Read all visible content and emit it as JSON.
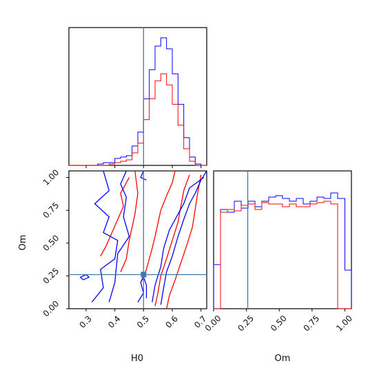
{
  "chart_data": {
    "type": "corner",
    "parameters": [
      "H0",
      "Om"
    ],
    "x_axis_label": "H0",
    "y_axis_label_left": "Om",
    "om_axis_label": "Om",
    "h0_range": [
      0.24,
      0.72
    ],
    "om_range": [
      0.0,
      1.05
    ],
    "h0_ticks": [
      "0.3",
      "0.4",
      "0.5",
      "0.6",
      "0.7"
    ],
    "om_ticks": [
      "0.00",
      "0.25",
      "0.50",
      "0.75",
      "1.00"
    ],
    "truth": {
      "H0": 0.5,
      "Om": 0.26
    },
    "colors": {
      "series_a": "#0000ff",
      "series_b": "#ff0000",
      "truth": "#3d7aab"
    },
    "h0_hist": {
      "bins": [
        0.24,
        0.26,
        0.28,
        0.3,
        0.32,
        0.34,
        0.36,
        0.38,
        0.4,
        0.42,
        0.44,
        0.46,
        0.48,
        0.5,
        0.52,
        0.54,
        0.56,
        0.58,
        0.6,
        0.62,
        0.64,
        0.66,
        0.68,
        0.7,
        0.72
      ],
      "series": [
        {
          "color": "blue",
          "values": [
            0,
            0,
            0,
            0,
            0,
            1,
            2,
            2,
            5,
            6,
            7,
            14,
            24,
            48,
            69,
            86,
            92,
            84,
            66,
            44,
            20,
            6,
            1,
            0
          ]
        },
        {
          "color": "red",
          "values": [
            0,
            0,
            0,
            0,
            0,
            0,
            0,
            1,
            2,
            3,
            4,
            9,
            16,
            33,
            48,
            61,
            66,
            58,
            44,
            29,
            12,
            3,
            0,
            0
          ]
        }
      ]
    },
    "om_hist": {
      "bins": [
        0.0,
        0.0525,
        0.105,
        0.1575,
        0.21,
        0.2625,
        0.315,
        0.3675,
        0.42,
        0.4725,
        0.525,
        0.5775,
        0.63,
        0.6825,
        0.735,
        0.7875,
        0.84,
        0.8925,
        0.945,
        1.0,
        1.05
      ],
      "series": [
        {
          "color": "blue",
          "values": [
            0.32,
            0.72,
            0.7,
            0.78,
            0.73,
            0.78,
            0.74,
            0.78,
            0.81,
            0.82,
            0.8,
            0.78,
            0.8,
            0.76,
            0.78,
            0.81,
            0.8,
            0.84,
            0.8,
            0.28
          ]
        },
        {
          "color": "red",
          "values": [
            0.0,
            0.7,
            0.72,
            0.71,
            0.75,
            0.76,
            0.72,
            0.77,
            0.76,
            0.76,
            0.74,
            0.76,
            0.74,
            0.74,
            0.76,
            0.77,
            0.78,
            0.76,
            0.0,
            0.0
          ]
        }
      ]
    },
    "contours": {
      "blue": [
        [
          [
            0.29,
            0.22
          ],
          [
            0.31,
            0.24
          ],
          [
            0.3,
            0.26
          ],
          [
            0.28,
            0.24
          ],
          [
            0.29,
            0.22
          ]
        ],
        [
          [
            0.32,
            0.05
          ],
          [
            0.36,
            0.16
          ],
          [
            0.35,
            0.3
          ],
          [
            0.4,
            0.38
          ],
          [
            0.41,
            0.52
          ],
          [
            0.36,
            0.58
          ],
          [
            0.38,
            0.7
          ],
          [
            0.33,
            0.8
          ],
          [
            0.38,
            0.9
          ],
          [
            0.36,
            1.05
          ]
        ],
        [
          [
            0.44,
            1.05
          ],
          [
            0.42,
            0.95
          ],
          [
            0.44,
            0.85
          ],
          [
            0.43,
            0.7
          ],
          [
            0.45,
            0.55
          ],
          [
            0.41,
            0.42
          ],
          [
            0.4,
            0.2
          ],
          [
            0.38,
            0.05
          ]
        ],
        [
          [
            0.48,
            0.05
          ],
          [
            0.5,
            0.12
          ],
          [
            0.49,
            0.2
          ],
          [
            0.5,
            0.24
          ],
          [
            0.51,
            0.18
          ],
          [
            0.51,
            0.08
          ]
        ],
        [
          [
            0.5,
            1.05
          ],
          [
            0.49,
            1.0
          ],
          [
            0.51,
            0.98
          ]
        ],
        [
          [
            0.53,
            0.05
          ],
          [
            0.54,
            0.18
          ],
          [
            0.56,
            0.32
          ],
          [
            0.57,
            0.46
          ],
          [
            0.59,
            0.6
          ],
          [
            0.62,
            0.72
          ],
          [
            0.64,
            0.8
          ],
          [
            0.66,
            0.92
          ],
          [
            0.71,
            1.0
          ]
        ],
        [
          [
            0.56,
            0.03
          ],
          [
            0.57,
            0.16
          ],
          [
            0.58,
            0.28
          ],
          [
            0.6,
            0.4
          ],
          [
            0.62,
            0.55
          ],
          [
            0.64,
            0.68
          ],
          [
            0.66,
            0.8
          ],
          [
            0.68,
            0.88
          ],
          [
            0.7,
            0.98
          ],
          [
            0.72,
            1.05
          ]
        ]
      ],
      "red": [
        [
          [
            0.35,
            0.4
          ],
          [
            0.37,
            0.48
          ],
          [
            0.39,
            0.58
          ],
          [
            0.41,
            0.68
          ],
          [
            0.43,
            0.78
          ],
          [
            0.42,
            0.88
          ],
          [
            0.45,
            1.0
          ]
        ],
        [
          [
            0.42,
            0.28
          ],
          [
            0.44,
            0.38
          ],
          [
            0.45,
            0.52
          ],
          [
            0.46,
            0.62
          ],
          [
            0.47,
            0.72
          ],
          [
            0.48,
            0.88
          ],
          [
            0.47,
            1.05
          ]
        ],
        [
          [
            0.49,
            0.2
          ],
          [
            0.51,
            0.3
          ],
          [
            0.52,
            0.38
          ],
          [
            0.53,
            0.46
          ],
          [
            0.54,
            0.55
          ],
          [
            0.55,
            0.65
          ],
          [
            0.56,
            0.75
          ],
          [
            0.58,
            0.86
          ],
          [
            0.6,
            0.96
          ],
          [
            0.61,
            1.05
          ]
        ],
        [
          [
            0.54,
            0.02
          ],
          [
            0.55,
            0.12
          ],
          [
            0.56,
            0.25
          ],
          [
            0.58,
            0.38
          ],
          [
            0.6,
            0.52
          ],
          [
            0.62,
            0.66
          ],
          [
            0.63,
            0.78
          ],
          [
            0.64,
            0.9
          ],
          [
            0.66,
            1.02
          ]
        ],
        [
          [
            0.58,
            0.0
          ],
          [
            0.59,
            0.1
          ],
          [
            0.61,
            0.22
          ],
          [
            0.63,
            0.35
          ],
          [
            0.65,
            0.48
          ],
          [
            0.67,
            0.62
          ],
          [
            0.68,
            0.76
          ],
          [
            0.69,
            0.9
          ],
          [
            0.7,
            1.02
          ]
        ]
      ]
    }
  }
}
